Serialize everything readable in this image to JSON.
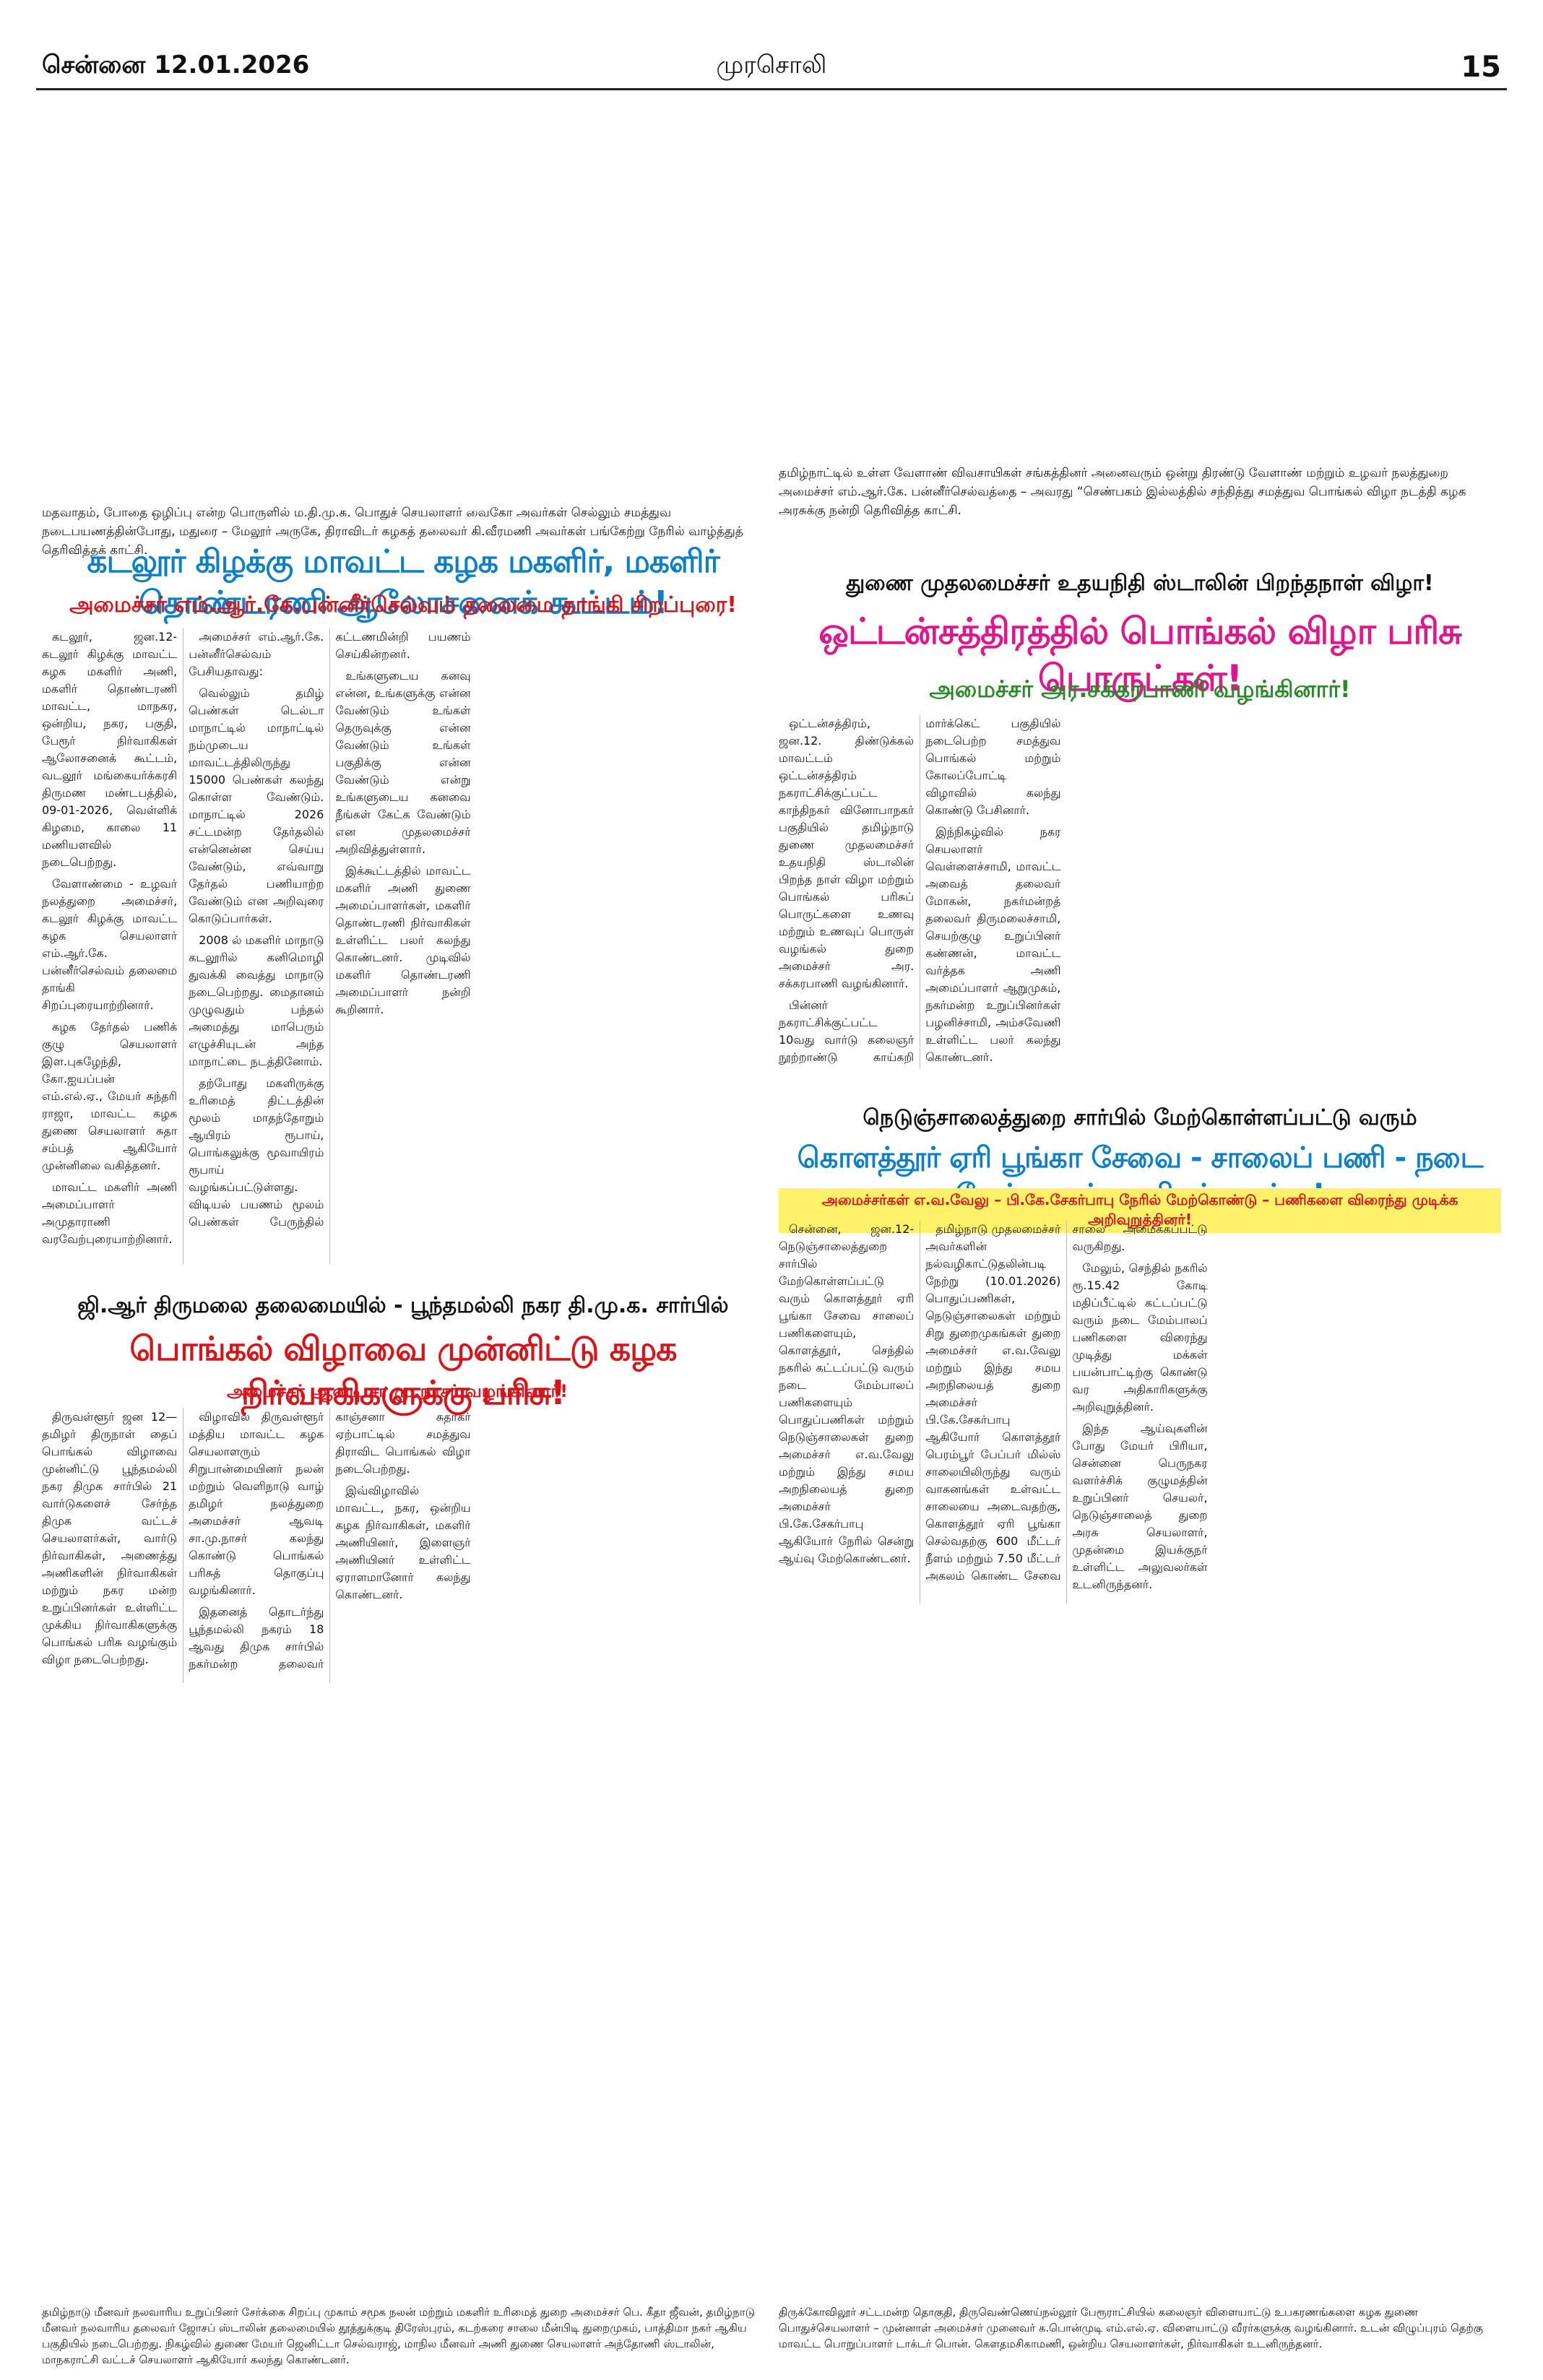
{
  "header": {
    "city_date": "சென்னை 12.01.2026",
    "masthead": "முரசொலி",
    "page_number": "15"
  },
  "captions": {
    "top_left": "மதவாதம், போதை ஒழிப்பு என்ற பொருளில் ம.தி.மு.க. பொதுச் செயலாளர் வைகோ அவர்கள் செல்லும் சமத்துவ நடைபயணத்தின்போது, மதுரை – மேலூர் அருகே, திராவிடர் கழகத் தலைவர் கி.வீரமணி அவர்கள் பங்கேற்று நேரில் வாழ்த்துத் தெரிவித்தக் காட்சி.",
    "top_right": "தமிழ்நாட்டில் உள்ள வேளாண் விவசாயிகள் சங்கத்தினர் அனைவரும் ஒன்று திரண்டு வேளாண் மற்றும் உழவர் நலத்துறை அமைச்சர் எம்.ஆர்.கே. பன்னீர்செல்வத்தை – அவரது “செண்பகம் இல்லத்தில் சந்தித்து சமத்துவ பொங்கல் விழா நடத்தி கழக அரசுக்கு நன்றி தெரிவித்த காட்சி.",
    "bottom_left": "தமிழ்நாடு மீனவர் நலவாரிய உறுப்பினர் சேர்க்கை சிறப்பு முகாம் சமூக நலன் மற்றும் மகளிர் உரிமைத் துறை அமைச்சர் பெ. கீதா ஜீவன், தமிழ்நாடு மீனவர் நலவாரிய தலைவர் ஜோசப் ஸ்டாலின் தலைமையில் தூத்துக்குடி திரேஸ்புரம், கடற்கரை சாலை மீன்பிடி துறைமுகம், பாத்திமா நகர் ஆகிய பகுதியில் நடைபெற்றது. நிகழ்வில் துணை மேயர் ஜெனிட்டா செல்வராஜ், மாநில மீனவர் அணி துணை செயலாளர் அந்தோணி ஸ்டாலின், மாநகராட்சி வட்டச் செயலாளர் ஆகியோர் கலந்து கொண்டனர்.",
    "bottom_right": "திருக்கோவிலூர் சட்டமன்ற தொகுதி, திருவெண்ணெய்நல்லூர் பேரூராட்சியில் கலைஞர் விளையாட்டு உபகரணங்களை கழக துணை பொதுச்செயலாளர் – முன்னாள் அமைச்சர் முனைவர் க.பொன்முடி எம்.எல்.ஏ. விளையாட்டு வீரர்களுக்கு வழங்கினார். உடன் விழுப்புரம் தெற்கு மாவட்ட பொறுப்பாளர் டாக்டர் பொன். கௌதமசிகாமணி, ஒன்றிய செயலாளர்கள், நிர்வாகிகள் உடனிருந்தனர்."
  },
  "articles": [
    {
      "headline": "கடலூர் கிழக்கு மாவட்ட கழக மகளிர், மகளிர் தொண்டரணி ஆலோசனைக் கூட்டம்!",
      "subheadline": "அமைச்சர் எம்.ஆர்.கே.பன்னீர்செல்வம் தலைமை தாங்கி சிறப்புரை!",
      "body": [
        "கடலூர், ஜன.12- கடலூர் கிழக்கு மாவட்ட கழக மகளிர் அணி, மகளிர் தொண்டரணி மாவட்ட, மாநகர, ஒன்றிய, நகர, பகுதி, பேரூர் நிர்வாகிகள் ஆலோசனைக் கூட்டம், வடலூர் மங்கையர்க்கரசி திருமண மண்டபத்தில், 09-01-2026, வெள்ளிக் கிழமை, காலை 11 மணியளவில் நடைபெற்றது.",
        "வேளாண்மை - உழவர் நலத்துறை அமைச்சர், கடலூர் கிழக்கு மாவட்ட கழக செயலாளர் எம்.ஆர்.கே. பன்னீர்செல்வம் தலைமை தாங்கி சிறப்புரையாற்றினார்.",
        "கழக தேர்தல் பணிக் குழு செயலாளர் இள.புகழேந்தி, கோ.ஐயப்பன் எம்.எல்.ஏ., மேயர் சுந்தரி ராஜா, மாவட்ட கழக துணை செயலாளர் சுதா சம்பத் ஆகியோர் முன்னிலை வகித்தனர்.",
        "மாவட்ட மகளிர் அணி அமைப்பாளர் அமுதாராணி வரவேற்புரையாற்றினார்.",
        "அமைச்சர் எம்.ஆர்.கே. பன்னீர்செல்வம் பேசியதாவது:",
        "வெல்லும் தமிழ் பெண்கள் டெல்டா மாநாட்டில் மாநாட்டில் நம்முடைய மாவட்டத்திலிருந்து 15000 பெண்கள் கலந்து கொள்ள வேண்டும். மாநாட்டில் 2026 சட்டமன்ற தேர்தலில் என்னென்ன செய்ய வேண்டும், எவ்வாறு தேர்தல் பணியாற்ற வேண்டும் என அறிவுரை கொடுப்பார்கள்.",
        "2008 ல் மகளிர் மாநாடு கடலூரில் கனிமொழி துவக்கி வைத்து மாநாடு நடைபெற்றது. மைதானம் முழுவதும் பந்தல் அமைத்து மாபெரும் எழுச்சியுடன் அந்த மாநாட்டை நடத்தினோம்.",
        "தற்போது மகளிருக்கு உரிமைத் திட்டத்தின் மூலம் மாதந்தோறும் ஆயிரம் ரூபாய், பொங்கலுக்கு மூவாயிரம் ரூபாய் வழங்கப்பட்டுள்ளது. விடியல் பயணம் மூலம் பெண்கள் பேருந்தில் கட்டணமின்றி பயணம் செய்கின்றனர்.",
        "உங்களுடைய கனவு என்ன, உங்களுக்கு என்ன வேண்டும் உங்கள் தெருவுக்கு என்ன வேண்டும் உங்கள் பகுதிக்கு என்ன வேண்டும் என்று உங்களுடைய கனவை நீங்கள் கேட்க வேண்டும் என முதலமைச்சர் அறிவித்துள்ளார்.",
        "இக்கூட்டத்தில் மாவட்ட மகளிர் அணி துணை அமைப்பாளர்கள், மகளிர் தொண்டரணி நிர்வாகிகள் உள்ளிட்ட பலர் கலந்து கொண்டனர். முடிவில் மகளிர் தொண்டரணி அமைப்பாளர் நன்றி கூறினார்."
      ]
    },
    {
      "kicker": "துணை முதலமைச்சர் உதயநிதி ஸ்டாலின் பிறந்தநாள் விழா!",
      "headline": "ஒட்டன்சத்திரத்தில் பொங்கல் விழா பரிசு பொருட்கள்!",
      "subheadline": "அமைச்சர் அர.சக்கரபாணி வழங்கினார்!",
      "body": [
        "ஒட்டன்சத்திரம், ஜன.12. திண்டுக்கல் மாவட்டம் ஒட்டன்சத்திரம் நகராட்சிக்குட்பட்ட காந்திநகர் வினோபாநகர் பகுதியில் தமிழ்நாடு துணை முதலமைச்சர் உதயநிதி ஸ்டாலின் பிறந்த நாள் விழா மற்றும் பொங்கல் பரிசுப் பொருட்களை உணவு மற்றும் உணவுப் பொருள் வழங்கல் துறை அமைச்சர் அர. சக்கரபாணி வழங்கினார்.",
        "பின்னர் நகராட்சிக்குட்பட்ட 10வது வார்டு கலைஞர் நூற்றாண்டு காய்கறி மார்க்கெட் பகுதியில் நடைபெற்ற சமத்துவ பொங்கல் மற்றும் கோலப்போட்டி விழாவில் கலந்து கொண்டு பேசினார்.",
        "இந்நிகழ்வில் நகர செயலாளர் வெள்ளைச்சாமி, மாவட்ட அவைத் தலைவர் மோகன், நகர்மன்றத் தலைவர் திருமலைச்சாமி, செயற்குழு உறுப்பினர் கண்ணன், மாவட்ட வர்த்தக அணி அமைப்பாளர் ஆறுமுகம், நகர்மன்ற உறுப்பினர்கள் பழனிச்சாமி, அம்சவேணி உள்ளிட்ட பலர் கலந்து கொண்டனர்."
      ]
    },
    {
      "kicker": "நெடுஞ்சாலைத்துறை சார்பில் மேற்கொள்ளப்பட்டு வரும்",
      "headline": "கொளத்தூர் ஏரி பூங்கா சேவை - சாலைப் பணி - நடை மேம்பாலப் பணிகள் ஆய்வு!",
      "subheadline": "அமைச்சர்கள் எ.வ.வேலு – பி.கே.சேகர்பாபு நேரில் மேற்கொண்டு – பணிகளை விரைந்து முடிக்க அறிவுறுத்தினர்!",
      "body": [
        "சென்னை, ஜன.12- நெடுஞ்சாலைத்துறை சார்பில் மேற்கொள்ளப்பட்டு வரும் கொளத்தூர் ஏரி பூங்கா சேவை சாலைப் பணிகளையும், கொளத்தூர், செந்தில் நகரில் கட்டப்பட்டு வரும் நடை மேம்பாலப் பணிகளையும் பொதுப்பணிகள் மற்றும் நெடுஞ்சாலைகள் துறை அமைச்சர் எ.வ.வேலு மற்றும் இந்து சமய அறநிலையத் துறை அமைச்சர் பி.கே.சேகர்பாபு ஆகியோர் நேரில் சென்று ஆய்வு மேற்கொண்டனர்.",
        "தமிழ்நாடு முதலமைச்சர் அவர்களின் நல்வழிகாட்டுதலின்படி நேற்று (10.01.2026) பொதுப்பணிகள், நெடுஞ்சாலைகள் மற்றும் சிறு துறைமுகங்கள் துறை அமைச்சர் எ.வ.வேலு மற்றும் இந்து சமய அறநிலையத் துறை அமைச்சர் பி.கே.சேகர்பாபு ஆகியோர் கொளத்தூர் பெரம்பூர் பேப்பர் மில்ஸ் சாலையிலிருந்து வரும் வாகனங்கள் உள்வட்ட சாலையை அடைவதற்கு, கொளத்தூர் ஏரி பூங்கா செல்வதற்கு 600 மீட்டர் நீளம் மற்றும் 7.50 மீட்டர் அகலம் கொண்ட சேவை சாலை அமைக்கப்பட்டு வருகிறது.",
        "மேலும், செந்தில் நகரில் ரூ.15.42 கோடி மதிப்பீட்டில் கட்டப்பட்டு வரும் நடை மேம்பாலப் பணிகளை விரைந்து முடித்து மக்கள் பயன்பாட்டிற்கு கொண்டு வர அதிகாரிகளுக்கு அறிவுறுத்தினர்.",
        "இந்த ஆய்வுகளின் போது மேயர் பிரியா, சென்னை பெருநகர வளர்ச்சிக் குழுமத்தின் உறுப்பினர் செயலர், நெடுஞ்சாலைத் துறை அரசு செயலாளர், முதன்மை இயக்குநர் உள்ளிட்ட அலுவலர்கள் உடனிருந்தனர்."
      ]
    },
    {
      "kicker": "ஜி.ஆர் திருமலை தலைமையில் - பூந்தமல்லி நகர தி.மு.க. சார்பில்",
      "headline": "பொங்கல் விழாவை முன்னிட்டு கழக நிர்வாகிகளுக்கு பரிசு!",
      "subheadline": "அமைச்சர் ஆவடி சா.மு.நாசர் வழங்கினார்!",
      "body": [
        "திருவள்ளூர் ஜன 12— தமிழர் திருநாள் தைப் பொங்கல் விழாவை முன்னிட்டு பூந்தமல்லி நகர திமுக சார்பில் 21 வார்டுகளைச் சேர்ந்த திமுக வட்டச் செயலாளர்கள், வார்டு நிர்வாகிகள், அணைத்து அணிகளின் நிர்வாகிகள் மற்றும் நகர மன்ற உறுப்பினர்கள் உள்ளிட்ட முக்கிய நிர்வாகிகளுக்கு பொங்கல் பரிசு வழங்கும் விழா நடைபெற்றது.",
        "விழாவில் திருவள்ளூர் மத்திய மாவட்ட கழக செயலாளரும் சிறுபான்மையினர் நலன் மற்றும் வெளிநாடு வாழ் தமிழர் நலத்துறை அமைச்சர் ஆவடி சா.மு.நாசர் கலந்து கொண்டு பொங்கல் பரிசுத் தொகுப்பு வழங்கினார்.",
        "இதனைத் தொடர்ந்து பூந்தமல்லி நகரம் 18 ஆவது திமுக சார்பில் நகர்மன்ற தலைவர் காஞ்சனா சுதாகர் ஏற்பாட்டில் சமத்துவ திராவிட பொங்கல் விழா நடைபெற்றது.",
        "இவ்விழாவில் மாவட்ட, நகர, ஒன்றிய கழக நிர்வாகிகள், மகளிர் அணியினர், இளைஞர் அணியினர் உள்ளிட்ட ஏராளமானோர் கலந்து கொண்டனர்."
      ]
    }
  ]
}
